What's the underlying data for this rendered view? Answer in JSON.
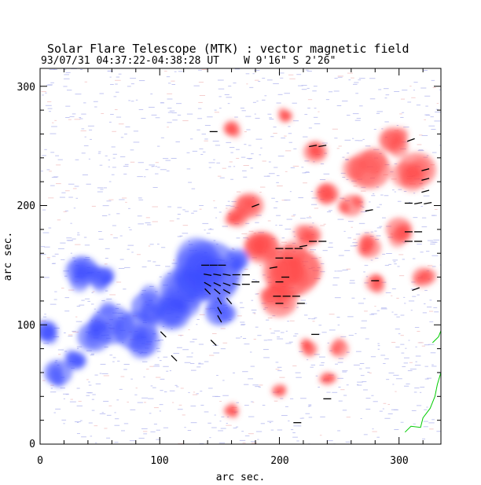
{
  "chart_data": {
    "type": "heatmap",
    "title": "Solar Flare Telescope (MTK) : vector magnetic field",
    "subtitle_date": "93/07/31  04:37:22-04:38:28 UT",
    "subtitle_position": "W 9'16\"  S 2'26\"",
    "xlabel": "arc sec.",
    "ylabel": "arc sec.",
    "xlim": [
      0,
      335
    ],
    "ylim": [
      0,
      315
    ],
    "x_ticks": [
      "0",
      "100",
      "200",
      "300"
    ],
    "y_ticks": [
      "0",
      "100",
      "200",
      "300"
    ],
    "x_tick_values": [
      0,
      100,
      200,
      300
    ],
    "y_tick_values": [
      0,
      100,
      200,
      300
    ],
    "polarity_colors": {
      "negative": "#3c4cff",
      "positive": "#ff4a4a",
      "noise": "#b4b8ef",
      "contour": "#00cc00"
    },
    "negative_blobs": [
      {
        "x": 140,
        "y": 145,
        "r": 28
      },
      {
        "x": 120,
        "y": 130,
        "r": 20
      },
      {
        "x": 110,
        "y": 110,
        "r": 16
      },
      {
        "x": 90,
        "y": 115,
        "r": 14
      },
      {
        "x": 80,
        "y": 95,
        "r": 18
      },
      {
        "x": 60,
        "y": 100,
        "r": 18
      },
      {
        "x": 45,
        "y": 90,
        "r": 14
      },
      {
        "x": 35,
        "y": 145,
        "r": 14
      },
      {
        "x": 50,
        "y": 140,
        "r": 10
      },
      {
        "x": 15,
        "y": 60,
        "r": 12
      },
      {
        "x": 5,
        "y": 95,
        "r": 10
      },
      {
        "x": 30,
        "y": 70,
        "r": 9
      },
      {
        "x": 150,
        "y": 110,
        "r": 12
      },
      {
        "x": 165,
        "y": 155,
        "r": 10
      }
    ],
    "positive_blobs": [
      {
        "x": 210,
        "y": 145,
        "r": 24
      },
      {
        "x": 185,
        "y": 165,
        "r": 15
      },
      {
        "x": 200,
        "y": 120,
        "r": 15
      },
      {
        "x": 175,
        "y": 200,
        "r": 12
      },
      {
        "x": 225,
        "y": 175,
        "r": 10
      },
      {
        "x": 230,
        "y": 245,
        "r": 10
      },
      {
        "x": 240,
        "y": 210,
        "r": 10
      },
      {
        "x": 275,
        "y": 230,
        "r": 18
      },
      {
        "x": 295,
        "y": 255,
        "r": 12
      },
      {
        "x": 315,
        "y": 230,
        "r": 16
      },
      {
        "x": 260,
        "y": 200,
        "r": 10
      },
      {
        "x": 300,
        "y": 180,
        "r": 11
      },
      {
        "x": 275,
        "y": 165,
        "r": 10
      },
      {
        "x": 320,
        "y": 140,
        "r": 9
      },
      {
        "x": 280,
        "y": 135,
        "r": 8
      },
      {
        "x": 225,
        "y": 80,
        "r": 7
      },
      {
        "x": 250,
        "y": 80,
        "r": 8
      },
      {
        "x": 240,
        "y": 55,
        "r": 6
      },
      {
        "x": 200,
        "y": 45,
        "r": 6
      },
      {
        "x": 160,
        "y": 265,
        "r": 7
      },
      {
        "x": 205,
        "y": 275,
        "r": 6
      },
      {
        "x": 160,
        "y": 28,
        "r": 6
      },
      {
        "x": 165,
        "y": 190,
        "r": 9
      }
    ],
    "transverse_field_vectors": [
      {
        "x": 138,
        "y": 150,
        "angle": 0
      },
      {
        "x": 145,
        "y": 150,
        "angle": 0
      },
      {
        "x": 152,
        "y": 150,
        "angle": 0
      },
      {
        "x": 140,
        "y": 142,
        "angle": -10
      },
      {
        "x": 148,
        "y": 142,
        "angle": -10
      },
      {
        "x": 156,
        "y": 142,
        "angle": -10
      },
      {
        "x": 164,
        "y": 142,
        "angle": 0
      },
      {
        "x": 172,
        "y": 142,
        "angle": 0
      },
      {
        "x": 140,
        "y": 134,
        "angle": -30
      },
      {
        "x": 148,
        "y": 134,
        "angle": -25
      },
      {
        "x": 156,
        "y": 134,
        "angle": -20
      },
      {
        "x": 164,
        "y": 134,
        "angle": -10
      },
      {
        "x": 172,
        "y": 134,
        "angle": 0
      },
      {
        "x": 140,
        "y": 128,
        "angle": -45
      },
      {
        "x": 148,
        "y": 128,
        "angle": -40
      },
      {
        "x": 156,
        "y": 128,
        "angle": -30
      },
      {
        "x": 150,
        "y": 120,
        "angle": -60
      },
      {
        "x": 158,
        "y": 120,
        "angle": -50
      },
      {
        "x": 150,
        "y": 112,
        "angle": -60
      },
      {
        "x": 150,
        "y": 105,
        "angle": -60
      },
      {
        "x": 145,
        "y": 85,
        "angle": -45
      },
      {
        "x": 103,
        "y": 92,
        "angle": -45
      },
      {
        "x": 112,
        "y": 72,
        "angle": -45
      },
      {
        "x": 180,
        "y": 136,
        "angle": 0
      },
      {
        "x": 200,
        "y": 164,
        "angle": 0
      },
      {
        "x": 208,
        "y": 164,
        "angle": 0
      },
      {
        "x": 216,
        "y": 164,
        "angle": 0
      },
      {
        "x": 200,
        "y": 156,
        "angle": 0
      },
      {
        "x": 208,
        "y": 156,
        "angle": 0
      },
      {
        "x": 195,
        "y": 148,
        "angle": 10
      },
      {
        "x": 205,
        "y": 140,
        "angle": 0
      },
      {
        "x": 200,
        "y": 136,
        "angle": 0
      },
      {
        "x": 198,
        "y": 124,
        "angle": 0
      },
      {
        "x": 206,
        "y": 124,
        "angle": 0
      },
      {
        "x": 214,
        "y": 124,
        "angle": 0
      },
      {
        "x": 200,
        "y": 118,
        "angle": 0
      },
      {
        "x": 218,
        "y": 118,
        "angle": 0
      },
      {
        "x": 228,
        "y": 170,
        "angle": 0
      },
      {
        "x": 236,
        "y": 170,
        "angle": 0
      },
      {
        "x": 220,
        "y": 166,
        "angle": 10
      },
      {
        "x": 230,
        "y": 92,
        "angle": 0
      },
      {
        "x": 240,
        "y": 38,
        "angle": 0
      },
      {
        "x": 215,
        "y": 18,
        "angle": 0
      },
      {
        "x": 228,
        "y": 250,
        "angle": 10
      },
      {
        "x": 236,
        "y": 250,
        "angle": 10
      },
      {
        "x": 145,
        "y": 262,
        "angle": 0
      },
      {
        "x": 180,
        "y": 200,
        "angle": 20
      },
      {
        "x": 275,
        "y": 196,
        "angle": 10
      },
      {
        "x": 280,
        "y": 137,
        "angle": 0
      },
      {
        "x": 308,
        "y": 202,
        "angle": 0
      },
      {
        "x": 316,
        "y": 202,
        "angle": 10
      },
      {
        "x": 324,
        "y": 202,
        "angle": 10
      },
      {
        "x": 322,
        "y": 212,
        "angle": 15
      },
      {
        "x": 322,
        "y": 222,
        "angle": 15
      },
      {
        "x": 322,
        "y": 230,
        "angle": 15
      },
      {
        "x": 308,
        "y": 178,
        "angle": 0
      },
      {
        "x": 316,
        "y": 178,
        "angle": 0
      },
      {
        "x": 308,
        "y": 170,
        "angle": 0
      },
      {
        "x": 316,
        "y": 170,
        "angle": 0
      },
      {
        "x": 314,
        "y": 130,
        "angle": 20
      },
      {
        "x": 310,
        "y": 255,
        "angle": 20
      }
    ],
    "contour_points": [
      [
        305,
        10
      ],
      [
        310,
        15
      ],
      [
        318,
        14
      ],
      [
        320,
        22
      ],
      [
        326,
        30
      ],
      [
        330,
        40
      ],
      [
        332,
        50
      ],
      [
        335,
        60
      ]
    ],
    "contour2_points": [
      [
        328,
        85
      ],
      [
        333,
        90
      ],
      [
        335,
        95
      ]
    ]
  }
}
